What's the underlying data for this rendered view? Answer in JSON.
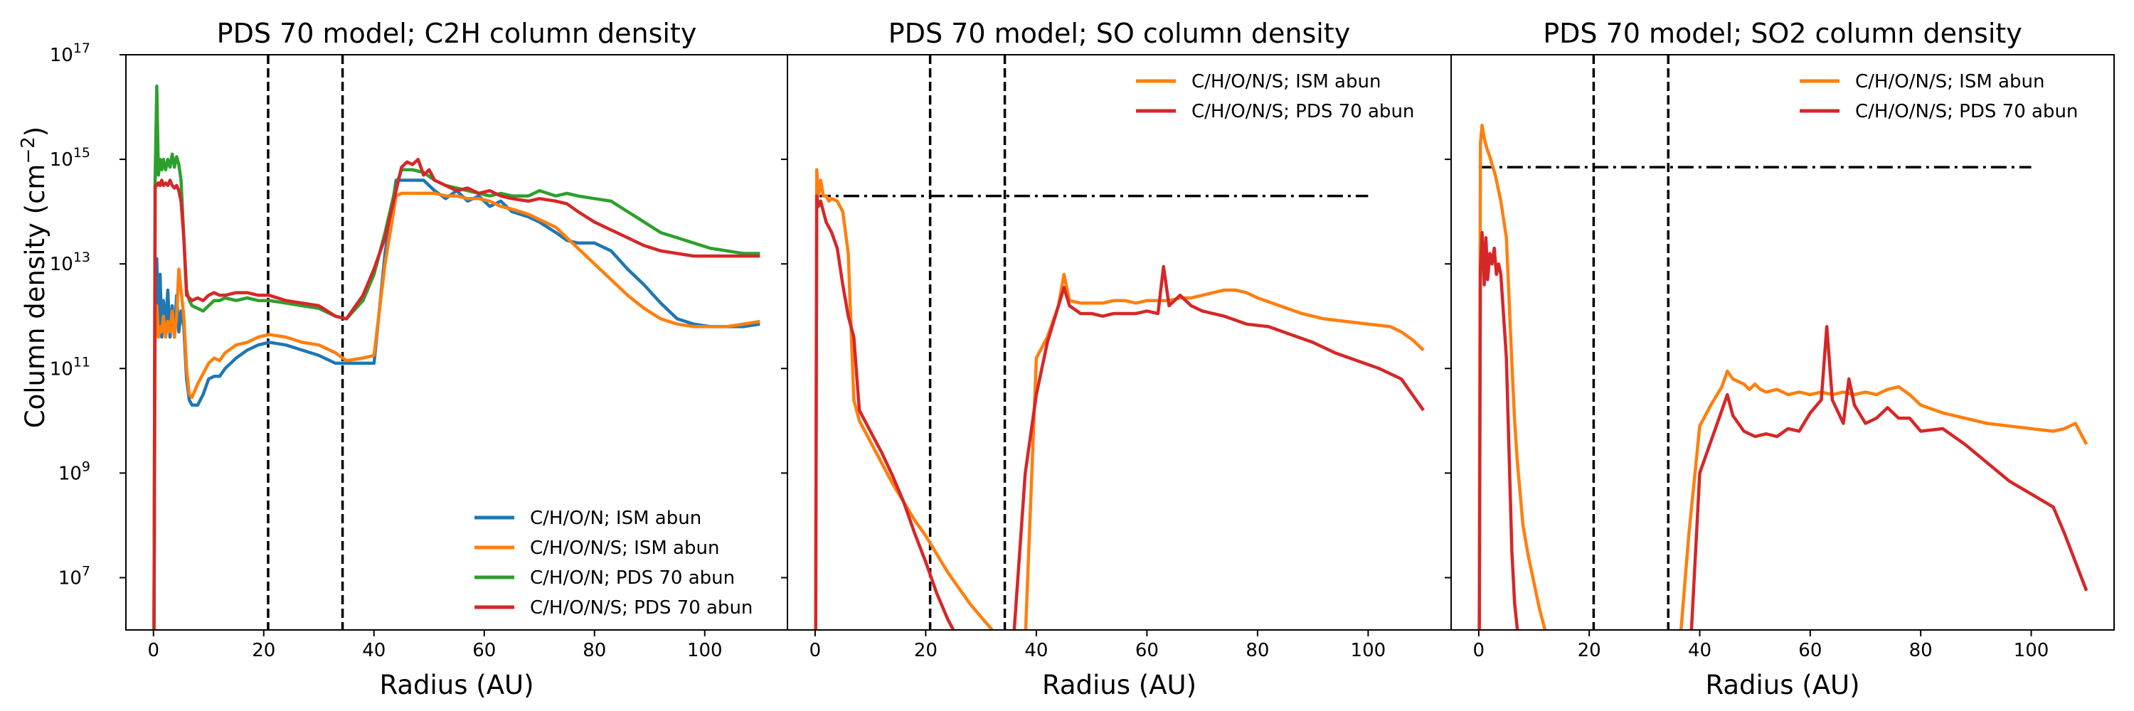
{
  "figure": {
    "ylabel_main": "Column density (cm",
    "ylabel_sup": "−2",
    "ylabel_tail": ")",
    "xlabel": "Radius (AU)"
  },
  "colors": {
    "blue": "#1f77b4",
    "orange": "#ff7f0e",
    "green": "#2ca02c",
    "red": "#d62728"
  },
  "chart_data": [
    {
      "type": "line",
      "title": "PDS 70 model; C2H column density",
      "xlabel": "Radius (AU)",
      "ylabel": "Column density (cm−2)",
      "yscale": "log",
      "xlim": [
        -5,
        115
      ],
      "ylim_log10": [
        6,
        17
      ],
      "xticks": [
        0,
        20,
        40,
        60,
        80,
        100
      ],
      "yticks": [
        "10^17",
        "10^15",
        "10^13",
        "10^11",
        "10^9",
        "10^7"
      ],
      "legend_position": "lower-right",
      "vlines": [
        20.8,
        34.3
      ],
      "series": [
        {
          "name": "C/H/O/N; ISM abun",
          "color": "#1f77b4",
          "x": [
            0.1,
            0.3,
            0.6,
            0.9,
            1.2,
            1.5,
            1.8,
            2.2,
            2.6,
            3.0,
            3.4,
            3.8,
            4.2,
            4.6,
            5.0,
            5.5,
            6.0,
            6.5,
            7,
            8,
            9,
            10,
            11,
            12,
            13,
            15,
            17,
            19,
            21,
            24,
            27,
            30,
            33,
            35,
            38,
            39,
            40,
            42,
            44,
            45,
            47,
            49,
            51,
            53,
            55,
            57,
            59,
            61,
            63,
            65,
            68,
            70,
            73,
            75,
            77,
            80,
            83,
            86,
            89,
            92,
            95,
            98,
            101,
            104,
            107,
            110
          ],
          "y": [
            6.0,
            12.5,
            13.1,
            11.8,
            12.8,
            11.6,
            12.3,
            11.8,
            12.5,
            11.6,
            12.2,
            11.6,
            12.4,
            11.7,
            12.1,
            11.8,
            10.8,
            10.4,
            10.3,
            10.3,
            10.5,
            10.8,
            10.85,
            10.85,
            11.0,
            11.2,
            11.35,
            11.45,
            11.5,
            11.45,
            11.35,
            11.25,
            11.1,
            11.1,
            11.1,
            11.1,
            11.1,
            13.2,
            14.6,
            14.6,
            14.6,
            14.6,
            14.4,
            14.25,
            14.4,
            14.2,
            14.3,
            14.1,
            14.2,
            14.0,
            13.9,
            13.8,
            13.6,
            13.45,
            13.4,
            13.4,
            13.25,
            12.9,
            12.6,
            12.25,
            11.95,
            11.85,
            11.8,
            11.8,
            11.8,
            11.85
          ]
        },
        {
          "name": "C/H/O/N/S; ISM abun",
          "color": "#ff7f0e",
          "x": [
            0.1,
            0.3,
            0.6,
            0.9,
            1.2,
            1.5,
            1.8,
            2.2,
            2.6,
            3.0,
            3.4,
            3.8,
            4.2,
            4.6,
            5.0,
            5.5,
            6.0,
            6.5,
            7,
            8,
            9,
            10,
            11,
            12,
            13,
            15,
            17,
            19,
            21,
            24,
            27,
            30,
            33,
            35,
            38,
            40,
            42,
            44,
            45,
            47,
            49,
            51,
            53,
            55,
            57,
            59,
            61,
            63,
            65,
            68,
            70,
            73,
            75,
            77,
            80,
            83,
            86,
            89,
            92,
            95,
            98,
            101,
            104,
            107,
            110
          ],
          "y": [
            6.0,
            11.8,
            12.2,
            11.6,
            11.8,
            11.7,
            12.0,
            11.6,
            11.9,
            11.7,
            12.1,
            11.6,
            12.0,
            12.9,
            12.5,
            12.0,
            11.0,
            10.5,
            10.45,
            10.7,
            10.9,
            11.1,
            11.2,
            11.15,
            11.3,
            11.45,
            11.5,
            11.6,
            11.65,
            11.6,
            11.5,
            11.45,
            11.3,
            11.15,
            11.2,
            11.25,
            13.0,
            14.3,
            14.35,
            14.35,
            14.35,
            14.35,
            14.3,
            14.3,
            14.25,
            14.25,
            14.2,
            14.1,
            14.05,
            13.95,
            13.85,
            13.7,
            13.5,
            13.3,
            13.0,
            12.7,
            12.4,
            12.15,
            11.95,
            11.85,
            11.8,
            11.8,
            11.8,
            11.85,
            11.9
          ]
        },
        {
          "name": "C/H/O/N; PDS 70 abun",
          "color": "#2ca02c",
          "x": [
            0.1,
            0.3,
            0.6,
            0.9,
            1.2,
            1.5,
            1.8,
            2.2,
            2.6,
            3.0,
            3.4,
            3.8,
            4.2,
            4.6,
            5.0,
            5.5,
            6.0,
            6.5,
            7,
            8,
            9,
            10,
            11,
            12,
            13,
            15,
            17,
            19,
            21,
            24,
            27,
            30,
            33,
            35,
            38,
            40,
            42,
            44,
            45,
            47,
            49,
            51,
            53,
            55,
            57,
            59,
            61,
            63,
            65,
            68,
            70,
            73,
            75,
            77,
            80,
            83,
            86,
            89,
            92,
            95,
            98,
            101,
            104,
            107,
            110
          ],
          "y": [
            6.0,
            14.6,
            16.4,
            14.7,
            15.0,
            14.8,
            15.0,
            14.8,
            15.0,
            14.85,
            15.1,
            14.85,
            15.05,
            14.9,
            14.6,
            13.5,
            12.5,
            12.3,
            12.2,
            12.15,
            12.1,
            12.2,
            12.3,
            12.3,
            12.35,
            12.3,
            12.35,
            12.3,
            12.3,
            12.25,
            12.2,
            12.15,
            12.0,
            11.95,
            12.3,
            12.8,
            13.6,
            14.5,
            14.8,
            14.8,
            14.75,
            14.6,
            14.5,
            14.45,
            14.4,
            14.35,
            14.3,
            14.35,
            14.3,
            14.3,
            14.4,
            14.3,
            14.35,
            14.3,
            14.25,
            14.2,
            14.0,
            13.8,
            13.6,
            13.5,
            13.4,
            13.3,
            13.25,
            13.2,
            13.2
          ]
        },
        {
          "name": "C/H/O/N/S; PDS 70 abun",
          "color": "#d62728",
          "x": [
            0.1,
            0.3,
            0.6,
            0.9,
            1.2,
            1.5,
            1.8,
            2.2,
            2.6,
            3.0,
            3.4,
            3.8,
            4.2,
            4.6,
            5.0,
            5.5,
            6.0,
            6.5,
            7,
            8,
            9,
            10,
            11,
            12,
            13,
            15,
            17,
            19,
            21,
            24,
            27,
            30,
            33,
            35,
            38,
            40,
            42,
            44,
            45,
            46,
            47,
            48,
            49,
            50,
            51,
            53,
            55,
            57,
            59,
            61,
            63,
            65,
            68,
            70,
            73,
            75,
            77,
            80,
            83,
            86,
            89,
            92,
            95,
            98,
            101,
            104,
            107,
            110
          ],
          "y": [
            6.0,
            14.5,
            14.5,
            14.55,
            14.5,
            14.6,
            14.5,
            14.55,
            14.5,
            14.6,
            14.5,
            14.45,
            14.5,
            14.4,
            14.2,
            13.5,
            12.4,
            12.35,
            12.3,
            12.35,
            12.3,
            12.4,
            12.45,
            12.4,
            12.4,
            12.45,
            12.45,
            12.4,
            12.4,
            12.3,
            12.25,
            12.2,
            12.0,
            11.95,
            12.4,
            12.9,
            13.5,
            14.4,
            14.85,
            14.95,
            14.9,
            15.0,
            14.7,
            14.8,
            14.6,
            14.5,
            14.4,
            14.45,
            14.35,
            14.4,
            14.3,
            14.25,
            14.2,
            14.25,
            14.2,
            14.15,
            14.0,
            13.8,
            13.65,
            13.5,
            13.35,
            13.25,
            13.2,
            13.15,
            13.15,
            13.15,
            13.15,
            13.15
          ]
        }
      ]
    },
    {
      "type": "line",
      "title": "PDS 70 model; SO column density",
      "xlabel": "Radius (AU)",
      "yscale": "log",
      "xlim": [
        -5,
        115
      ],
      "ylim_log10": [
        6,
        17
      ],
      "xticks": [
        0,
        20,
        40,
        60,
        80,
        100
      ],
      "legend_position": "top-right",
      "vlines": [
        20.8,
        34.3
      ],
      "hline": {
        "y_log10": 14.3,
        "x_range": [
          0,
          100
        ]
      },
      "series": [
        {
          "name": "C/H/O/N/S; ISM abun",
          "color": "#ff7f0e",
          "x": [
            0.1,
            0.3,
            0.6,
            1.0,
            1.5,
            2.0,
            2.5,
            3,
            4,
            5,
            6,
            7,
            8,
            10,
            12,
            14,
            16,
            18,
            20,
            22,
            24,
            26,
            28,
            30,
            32,
            34,
            36,
            38,
            40,
            42,
            44,
            45,
            46,
            48,
            50,
            52,
            54,
            56,
            58,
            60,
            62,
            64,
            66,
            68,
            70,
            72,
            74,
            76,
            78,
            80,
            84,
            88,
            92,
            96,
            100,
            104,
            106,
            108,
            110
          ],
          "y": [
            6.0,
            14.8,
            14.3,
            14.6,
            14.3,
            14.3,
            14.2,
            14.25,
            14.2,
            14.0,
            13.2,
            10.4,
            10.0,
            9.6,
            9.2,
            8.8,
            8.45,
            8.1,
            7.8,
            7.45,
            7.1,
            6.8,
            6.5,
            6.25,
            6.0,
            5.8,
            5.5,
            5.8,
            11.2,
            11.6,
            12.2,
            12.8,
            12.3,
            12.25,
            12.25,
            12.25,
            12.3,
            12.3,
            12.25,
            12.3,
            12.3,
            12.3,
            12.35,
            12.35,
            12.4,
            12.45,
            12.5,
            12.5,
            12.45,
            12.35,
            12.2,
            12.05,
            11.95,
            11.9,
            11.85,
            11.8,
            11.7,
            11.55,
            11.35
          ]
        },
        {
          "name": "C/H/O/N/S; PDS 70 abun",
          "color": "#d62728",
          "x": [
            0.1,
            0.3,
            0.6,
            1.0,
            1.5,
            2.0,
            2.5,
            3,
            4,
            5,
            6,
            7,
            8,
            10,
            12,
            14,
            16,
            18,
            20,
            22,
            24,
            26,
            28,
            30,
            32,
            34,
            36,
            38,
            40,
            42,
            44,
            45,
            46,
            48,
            50,
            52,
            54,
            56,
            58,
            60,
            62,
            63,
            64,
            66,
            68,
            70,
            74,
            78,
            82,
            86,
            90,
            94,
            98,
            102,
            106,
            110
          ],
          "y": [
            6.0,
            14.3,
            14.1,
            14.2,
            14.0,
            13.8,
            13.7,
            13.6,
            13.3,
            12.6,
            12.0,
            11.6,
            10.2,
            9.8,
            9.4,
            8.95,
            8.45,
            7.85,
            7.3,
            6.7,
            6.2,
            5.8,
            5.5,
            5.3,
            5.2,
            5.5,
            6.0,
            9.0,
            10.5,
            11.5,
            12.2,
            12.55,
            12.2,
            12.05,
            12.05,
            12.0,
            12.05,
            12.05,
            12.05,
            12.1,
            12.05,
            12.95,
            12.2,
            12.4,
            12.2,
            12.1,
            12.0,
            11.85,
            11.8,
            11.65,
            11.5,
            11.3,
            11.15,
            11.0,
            10.8,
            10.2
          ]
        }
      ]
    },
    {
      "type": "line",
      "title": "PDS 70 model; SO2 column density",
      "xlabel": "Radius (AU)",
      "yscale": "log",
      "xlim": [
        -5,
        115
      ],
      "ylim_log10": [
        6,
        17
      ],
      "xticks": [
        0,
        20,
        40,
        60,
        80,
        100
      ],
      "legend_position": "top-right",
      "vlines": [
        20.8,
        34.3
      ],
      "hline": {
        "y_log10": 14.85,
        "x_range": [
          0,
          100
        ]
      },
      "series": [
        {
          "name": "C/H/O/N/S; ISM abun",
          "color": "#ff7f0e",
          "x": [
            0.1,
            0.3,
            0.6,
            1.0,
            1.5,
            2.0,
            3,
            4,
            5,
            6,
            6.5,
            7,
            8,
            9,
            10,
            11,
            12,
            13,
            14,
            36,
            37,
            38,
            40,
            42,
            44,
            45,
            46,
            47,
            48,
            49,
            50,
            51,
            52,
            54,
            56,
            58,
            60,
            62,
            64,
            66,
            68,
            70,
            72,
            74,
            76,
            78,
            80,
            84,
            88,
            92,
            96,
            100,
            104,
            106,
            108,
            110
          ],
          "y": [
            6.0,
            15.3,
            15.65,
            15.4,
            15.2,
            15.05,
            14.7,
            14.2,
            13.5,
            11.1,
            10.0,
            9.2,
            8.0,
            7.4,
            6.9,
            6.4,
            6.0,
            5.6,
            5.2,
            5.2,
            6.5,
            7.8,
            9.9,
            10.3,
            10.65,
            10.95,
            10.8,
            10.75,
            10.7,
            10.6,
            10.7,
            10.6,
            10.55,
            10.6,
            10.5,
            10.55,
            10.5,
            10.55,
            10.5,
            10.55,
            10.5,
            10.55,
            10.5,
            10.6,
            10.65,
            10.5,
            10.3,
            10.15,
            10.05,
            9.95,
            9.9,
            9.85,
            9.8,
            9.85,
            9.95,
            9.55
          ]
        },
        {
          "name": "C/H/O/N/S; PDS 70 abun",
          "color": "#d62728",
          "x": [
            0.1,
            0.3,
            0.6,
            1.0,
            1.3,
            1.6,
            2.0,
            2.4,
            2.8,
            3.2,
            3.6,
            4,
            5,
            6,
            6.5,
            7,
            8,
            38,
            40,
            42,
            44,
            45,
            46,
            48,
            50,
            52,
            54,
            56,
            58,
            60,
            62,
            63,
            64,
            66,
            67,
            68,
            70,
            72,
            74,
            76,
            78,
            80,
            84,
            88,
            92,
            96,
            100,
            104,
            106,
            110
          ],
          "y": [
            6.0,
            12.9,
            13.6,
            12.6,
            13.5,
            12.7,
            13.2,
            13.0,
            13.3,
            12.8,
            13.0,
            12.8,
            11.2,
            7.5,
            6.5,
            6.0,
            5.0,
            5.0,
            9.0,
            9.6,
            10.2,
            10.5,
            10.1,
            9.8,
            9.7,
            9.75,
            9.7,
            9.85,
            9.8,
            10.15,
            10.4,
            11.8,
            10.4,
            9.95,
            10.8,
            10.3,
            9.95,
            10.05,
            10.25,
            10.05,
            10.05,
            9.8,
            9.85,
            9.55,
            9.2,
            8.85,
            8.6,
            8.35,
            7.85,
            6.75
          ]
        }
      ]
    }
  ]
}
